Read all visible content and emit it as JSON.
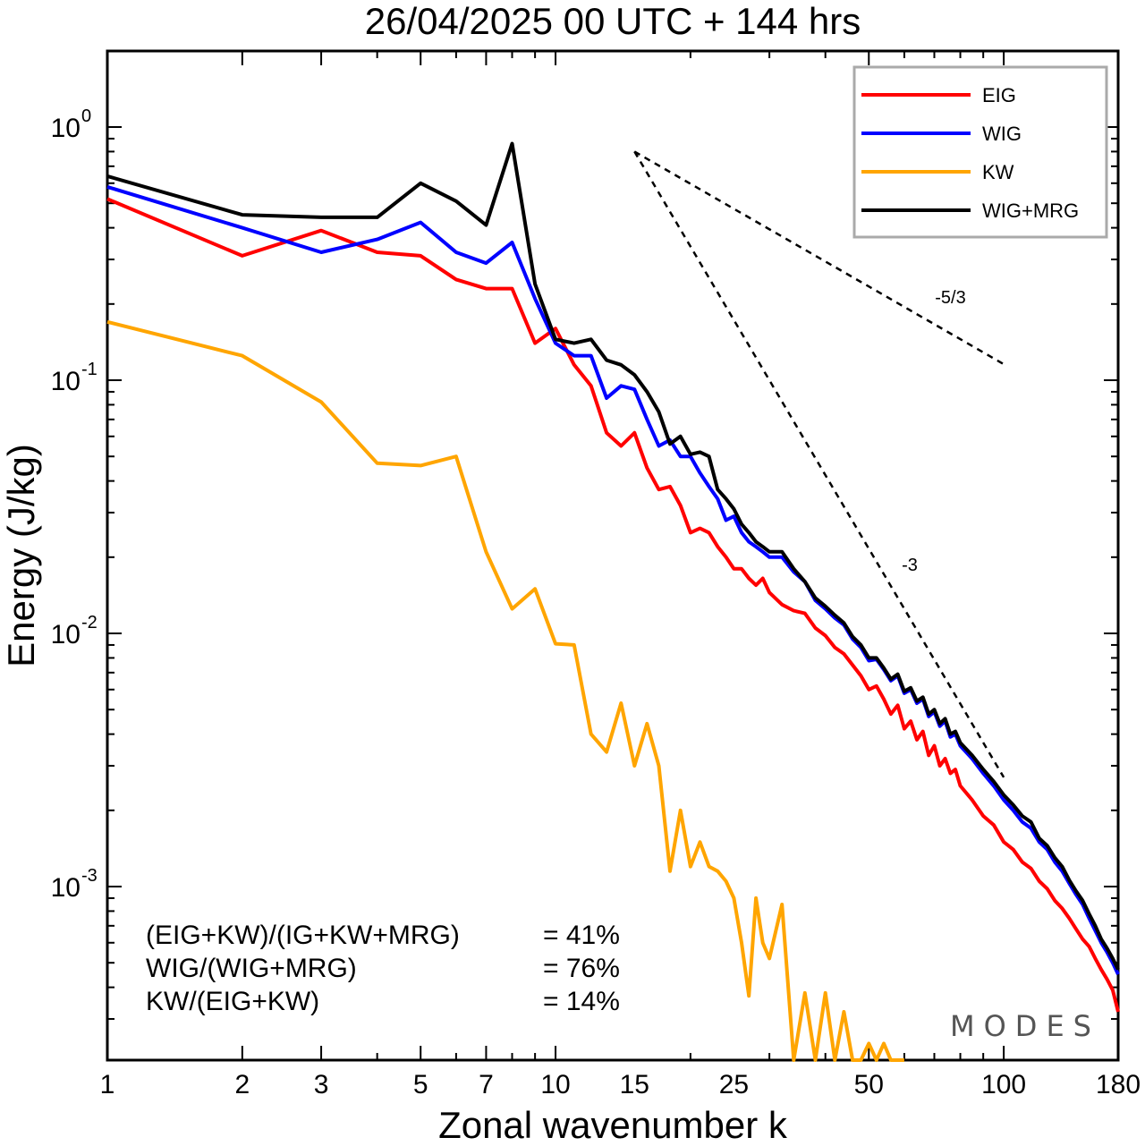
{
  "chart_data": {
    "type": "line",
    "title": "26/04/2025  00 UTC  + 144 hrs",
    "xlabel": "Zonal wavenumber k",
    "ylabel": "Energy (J/kg)",
    "xscale": "log",
    "yscale": "log",
    "xlim": [
      1,
      180
    ],
    "ylim": [
      0.00017,
      2.0
    ],
    "x_ticks": [
      {
        "value": 1,
        "label": "1"
      },
      {
        "value": 2,
        "label": "2"
      },
      {
        "value": 3,
        "label": "3"
      },
      {
        "value": 5,
        "label": "5"
      },
      {
        "value": 7,
        "label": "7"
      },
      {
        "value": 10,
        "label": "10"
      },
      {
        "value": 15,
        "label": "15"
      },
      {
        "value": 25,
        "label": "25"
      },
      {
        "value": 50,
        "label": "50"
      },
      {
        "value": 100,
        "label": "100"
      },
      {
        "value": 180,
        "label": "180"
      }
    ],
    "y_ticks": [
      {
        "value": 1.0,
        "base": "10",
        "exp": "0"
      },
      {
        "value": 0.1,
        "base": "10",
        "exp": "-1"
      },
      {
        "value": 0.01,
        "base": "10",
        "exp": "-2"
      },
      {
        "value": 0.001,
        "base": "10",
        "exp": "-3"
      }
    ],
    "grid": false,
    "legend_position": "top-right",
    "series": [
      {
        "name": "EIG",
        "color": "#ff0000",
        "x": [
          1,
          2,
          3,
          4,
          5,
          6,
          7,
          8,
          9,
          10,
          11,
          12,
          13,
          14,
          15,
          16,
          17,
          18,
          19,
          20,
          21,
          22,
          23,
          24,
          25,
          26,
          27,
          28,
          29,
          30,
          32,
          34,
          36,
          38,
          40,
          42,
          44,
          46,
          48,
          50,
          52,
          54,
          56,
          58,
          60,
          62,
          64,
          66,
          68,
          70,
          72,
          74,
          76,
          78,
          80,
          85,
          90,
          95,
          100,
          105,
          110,
          115,
          120,
          125,
          130,
          135,
          140,
          145,
          150,
          155,
          160,
          165,
          170,
          175,
          180
        ],
        "values": [
          0.52,
          0.31,
          0.39,
          0.32,
          0.31,
          0.25,
          0.23,
          0.23,
          0.14,
          0.16,
          0.115,
          0.095,
          0.062,
          0.055,
          0.062,
          0.045,
          0.037,
          0.038,
          0.032,
          0.025,
          0.026,
          0.025,
          0.022,
          0.02,
          0.018,
          0.018,
          0.0165,
          0.0155,
          0.0165,
          0.0145,
          0.013,
          0.0123,
          0.012,
          0.0105,
          0.0098,
          0.0088,
          0.0083,
          0.0075,
          0.0068,
          0.006,
          0.0062,
          0.0055,
          0.0048,
          0.0052,
          0.0042,
          0.0045,
          0.0038,
          0.0041,
          0.0033,
          0.0036,
          0.003,
          0.0032,
          0.0028,
          0.0029,
          0.0025,
          0.0022,
          0.0019,
          0.00175,
          0.0015,
          0.0014,
          0.00125,
          0.00118,
          0.00105,
          0.00098,
          0.00088,
          0.00082,
          0.00075,
          0.00068,
          0.00062,
          0.00058,
          0.00052,
          0.00047,
          0.00043,
          0.00039,
          0.00032
        ]
      },
      {
        "name": "WIG",
        "color": "#0000ff",
        "x": [
          1,
          2,
          3,
          4,
          5,
          6,
          7,
          8,
          9,
          10,
          11,
          12,
          13,
          14,
          15,
          16,
          17,
          18,
          19,
          20,
          21,
          22,
          23,
          24,
          25,
          26,
          27,
          28,
          29,
          30,
          32,
          34,
          36,
          38,
          40,
          42,
          44,
          46,
          48,
          50,
          52,
          54,
          56,
          58,
          60,
          62,
          64,
          66,
          68,
          70,
          72,
          74,
          76,
          78,
          80,
          85,
          90,
          95,
          100,
          105,
          110,
          115,
          120,
          125,
          130,
          135,
          140,
          145,
          150,
          155,
          160,
          165,
          170,
          175,
          180
        ],
        "values": [
          0.58,
          0.4,
          0.32,
          0.36,
          0.42,
          0.32,
          0.29,
          0.35,
          0.21,
          0.14,
          0.125,
          0.125,
          0.085,
          0.095,
          0.092,
          0.07,
          0.055,
          0.058,
          0.05,
          0.05,
          0.043,
          0.038,
          0.034,
          0.028,
          0.029,
          0.025,
          0.023,
          0.022,
          0.021,
          0.02,
          0.02,
          0.0175,
          0.016,
          0.0135,
          0.0125,
          0.0115,
          0.0108,
          0.0095,
          0.0088,
          0.0078,
          0.0079,
          0.0072,
          0.0065,
          0.0068,
          0.0058,
          0.006,
          0.0053,
          0.0055,
          0.0047,
          0.0049,
          0.0043,
          0.0045,
          0.0039,
          0.004,
          0.0036,
          0.0032,
          0.0028,
          0.0025,
          0.0022,
          0.002,
          0.0018,
          0.0017,
          0.0015,
          0.0014,
          0.00125,
          0.00115,
          0.00103,
          0.00093,
          0.00085,
          0.00075,
          0.00067,
          0.0006,
          0.00055,
          0.0005,
          0.00045
        ]
      },
      {
        "name": "KW",
        "color": "#ffa500",
        "x": [
          1,
          2,
          3,
          4,
          5,
          6,
          7,
          8,
          9,
          10,
          11,
          12,
          13,
          14,
          15,
          16,
          17,
          18,
          19,
          20,
          21,
          22,
          23,
          24,
          25,
          26,
          27,
          28,
          29,
          30,
          32,
          34,
          36,
          38,
          40,
          42,
          44,
          46,
          48,
          50,
          52,
          54,
          56,
          58,
          60
        ],
        "values": [
          0.17,
          0.125,
          0.082,
          0.047,
          0.046,
          0.05,
          0.021,
          0.0125,
          0.015,
          0.0091,
          0.009,
          0.004,
          0.0034,
          0.0053,
          0.003,
          0.0044,
          0.003,
          0.00115,
          0.002,
          0.0012,
          0.0015,
          0.0012,
          0.00115,
          0.00105,
          0.0009,
          0.0006,
          0.00037,
          0.0009,
          0.0006,
          0.00052,
          0.00085,
          0.0002,
          0.00038,
          0.0002,
          0.00038,
          0.00018,
          0.00032,
          0.0002,
          0.00019,
          0.00024,
          0.00018,
          0.00024,
          0.00018,
          0.00019,
          0.00018
        ]
      },
      {
        "name": "WIG+MRG",
        "color": "#000000",
        "x": [
          1,
          2,
          3,
          4,
          5,
          6,
          7,
          8,
          9,
          10,
          11,
          12,
          13,
          14,
          15,
          16,
          17,
          18,
          19,
          20,
          21,
          22,
          23,
          24,
          25,
          26,
          27,
          28,
          29,
          30,
          32,
          34,
          36,
          38,
          40,
          42,
          44,
          46,
          48,
          50,
          52,
          54,
          56,
          58,
          60,
          62,
          64,
          66,
          68,
          70,
          72,
          74,
          76,
          78,
          80,
          85,
          90,
          95,
          100,
          105,
          110,
          115,
          120,
          125,
          130,
          135,
          140,
          145,
          150,
          155,
          160,
          165,
          170,
          175,
          180
        ],
        "values": [
          0.64,
          0.45,
          0.44,
          0.44,
          0.6,
          0.51,
          0.41,
          0.86,
          0.24,
          0.145,
          0.14,
          0.145,
          0.12,
          0.115,
          0.105,
          0.09,
          0.075,
          0.056,
          0.06,
          0.051,
          0.052,
          0.05,
          0.037,
          0.034,
          0.031,
          0.027,
          0.025,
          0.023,
          0.022,
          0.021,
          0.021,
          0.018,
          0.016,
          0.0138,
          0.0128,
          0.0118,
          0.011,
          0.0097,
          0.009,
          0.008,
          0.008,
          0.0073,
          0.0066,
          0.0069,
          0.0059,
          0.0061,
          0.0054,
          0.0056,
          0.0048,
          0.005,
          0.0044,
          0.0046,
          0.004,
          0.0041,
          0.0037,
          0.0033,
          0.0029,
          0.0026,
          0.0023,
          0.0021,
          0.0019,
          0.0018,
          0.00155,
          0.00145,
          0.0013,
          0.0012,
          0.00106,
          0.00096,
          0.00088,
          0.00078,
          0.0007,
          0.00062,
          0.00057,
          0.00052,
          0.00047
        ]
      }
    ],
    "reference_lines": [
      {
        "label": "-5/3",
        "slope": "-5/3",
        "x": [
          15,
          100
        ],
        "y": [
          0.8,
          0.1157
        ],
        "style": "dashed"
      },
      {
        "label": "-3",
        "slope": "-3",
        "x": [
          15,
          100
        ],
        "y": [
          0.8,
          0.0027
        ],
        "style": "dashed"
      }
    ],
    "annotations": [
      {
        "label": "(EIG+KW)/(IG+KW+MRG)",
        "value": "= 41%"
      },
      {
        "label": "WIG/(WIG+MRG)",
        "value": "= 76%"
      },
      {
        "label": "KW/(EIG+KW)",
        "value": "= 14%"
      }
    ],
    "watermark": "MODES"
  }
}
